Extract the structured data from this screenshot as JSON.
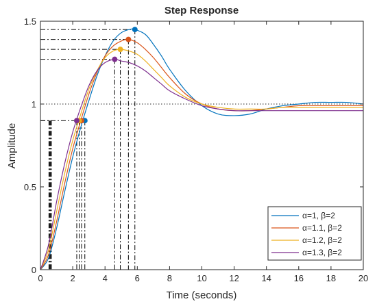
{
  "chart_data": {
    "type": "line",
    "title": "Step Response",
    "xlabel": "Time (seconds)",
    "ylabel": "Amplitude",
    "xlim": [
      0,
      20
    ],
    "ylim": [
      0,
      1.5
    ],
    "xticks": [
      0,
      2,
      4,
      6,
      8,
      10,
      12,
      14,
      16,
      18,
      20
    ],
    "yticks": [
      0,
      0.5,
      1,
      1.5
    ],
    "xtick_labels": [
      "0",
      "2",
      "4",
      "6",
      "8",
      "10",
      "12",
      "14",
      "16",
      "18",
      "20"
    ],
    "ytick_labels": [
      "0",
      "0.5",
      "1",
      "1.5"
    ],
    "grid": false,
    "reference_line": {
      "y": 1,
      "style": "dotted"
    },
    "legend_position": "bottom-right",
    "series": [
      {
        "name": "α=1, β=2",
        "color": "#0072BD",
        "x": [
          0,
          0.5,
          1,
          1.5,
          2,
          2.5,
          3,
          3.5,
          4,
          4.5,
          5,
          5.5,
          5.85,
          6.5,
          7,
          7.5,
          8,
          9,
          10,
          11,
          12,
          13,
          14,
          15,
          16,
          17,
          18,
          19,
          20
        ],
        "y": [
          0,
          0.07,
          0.25,
          0.47,
          0.68,
          0.86,
          1.02,
          1.17,
          1.29,
          1.38,
          1.43,
          1.45,
          1.45,
          1.42,
          1.36,
          1.29,
          1.21,
          1.08,
          0.99,
          0.94,
          0.93,
          0.94,
          0.97,
          0.99,
          1.0,
          1.01,
          1.01,
          1.01,
          1.0
        ]
      },
      {
        "name": "α=1.1, β=2",
        "color": "#D95319",
        "x": [
          0,
          0.5,
          1,
          1.5,
          2,
          2.5,
          3,
          3.5,
          4,
          4.5,
          5,
          5.45,
          6,
          6.5,
          7,
          7.5,
          8,
          9,
          10,
          11,
          12,
          13,
          14,
          15,
          16,
          17,
          18,
          19,
          20
        ],
        "y": [
          0,
          0.09,
          0.29,
          0.52,
          0.73,
          0.9,
          1.06,
          1.19,
          1.29,
          1.35,
          1.38,
          1.39,
          1.37,
          1.33,
          1.28,
          1.22,
          1.16,
          1.06,
          1.0,
          0.97,
          0.96,
          0.96,
          0.97,
          0.98,
          0.99,
          0.99,
          0.99,
          0.99,
          0.99
        ]
      },
      {
        "name": "α=1.2, β=2",
        "color": "#EDB120",
        "x": [
          0,
          0.5,
          1,
          1.5,
          2,
          2.5,
          3,
          3.5,
          4,
          4.5,
          4.95,
          5.5,
          6,
          6.5,
          7,
          7.5,
          8,
          9,
          10,
          11,
          12,
          13,
          14,
          15,
          16,
          17,
          18,
          19,
          20
        ],
        "y": [
          0,
          0.12,
          0.35,
          0.58,
          0.78,
          0.94,
          1.09,
          1.2,
          1.28,
          1.32,
          1.33,
          1.32,
          1.3,
          1.26,
          1.21,
          1.16,
          1.11,
          1.04,
          1.0,
          0.98,
          0.97,
          0.97,
          0.97,
          0.98,
          0.98,
          0.98,
          0.98,
          0.98,
          0.98
        ]
      },
      {
        "name": "α=1.3, β=2",
        "color": "#7E2F8E",
        "x": [
          0,
          0.5,
          1,
          1.5,
          2,
          2.5,
          3,
          3.5,
          4,
          4.6,
          5,
          5.5,
          6,
          6.5,
          7,
          7.5,
          8,
          9,
          10,
          11,
          12,
          13,
          14,
          15,
          16,
          17,
          18,
          19,
          20
        ],
        "y": [
          0,
          0.15,
          0.41,
          0.64,
          0.83,
          0.98,
          1.11,
          1.2,
          1.25,
          1.27,
          1.26,
          1.25,
          1.23,
          1.2,
          1.16,
          1.12,
          1.08,
          1.03,
          0.99,
          0.97,
          0.96,
          0.96,
          0.96,
          0.96,
          0.96,
          0.96,
          0.96,
          0.96,
          0.96
        ]
      }
    ],
    "rise_markers": [
      {
        "series": 0,
        "x": 2.75,
        "y": 0.9
      },
      {
        "series": 1,
        "x": 2.55,
        "y": 0.9
      },
      {
        "series": 2,
        "x": 2.4,
        "y": 0.9
      },
      {
        "series": 3,
        "x": 2.25,
        "y": 0.9
      }
    ],
    "peak_markers": [
      {
        "series": 0,
        "x": 5.85,
        "y": 1.45
      },
      {
        "series": 1,
        "x": 5.45,
        "y": 1.39
      },
      {
        "series": 2,
        "x": 4.95,
        "y": 1.33
      },
      {
        "series": 3,
        "x": 4.6,
        "y": 1.27
      }
    ],
    "rise_reference": {
      "x": 0.6,
      "y": 0.9
    }
  }
}
